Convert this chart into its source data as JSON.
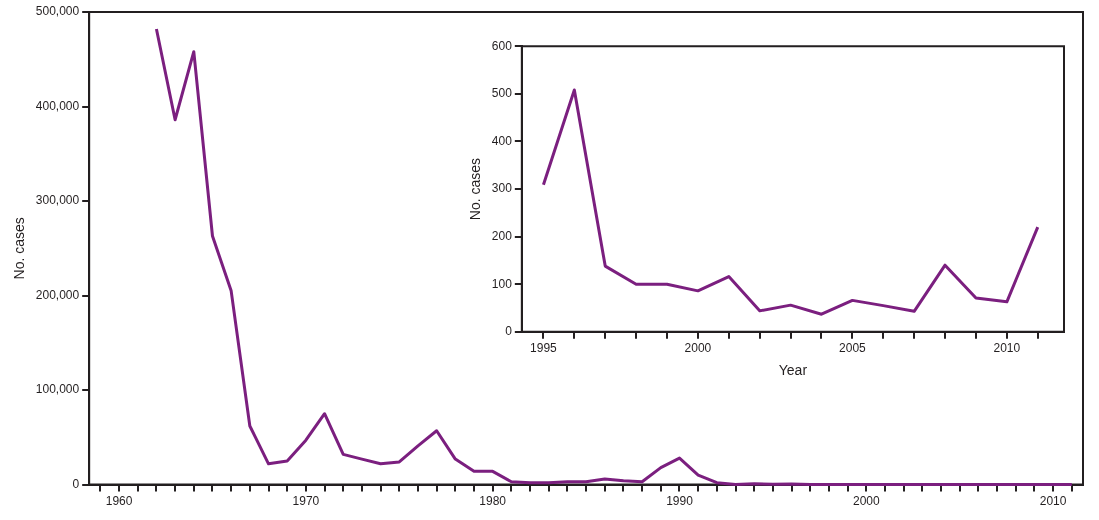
{
  "chart_data": [
    {
      "type": "line",
      "ylabel": "No. cases",
      "x": [
        1962,
        1963,
        1964,
        1965,
        1966,
        1967,
        1968,
        1969,
        1970,
        1971,
        1972,
        1973,
        1974,
        1975,
        1976,
        1977,
        1978,
        1979,
        1980,
        1981,
        1982,
        1983,
        1984,
        1985,
        1986,
        1987,
        1988,
        1989,
        1990,
        1991,
        1992,
        1993,
        1994,
        1995,
        1996,
        1997,
        1998,
        1999,
        2000,
        2001,
        2002,
        2003,
        2004,
        2005,
        2006,
        2007,
        2008,
        2009,
        2010,
        2011
      ],
      "series": [
        {
          "color": "#7b1f7f",
          "values": [
            482000,
            386000,
            458000,
            263000,
            205000,
            62000,
            22000,
            25000,
            47000,
            75000,
            32000,
            27000,
            22000,
            24000,
            41000,
            57000,
            27000,
            14000,
            14000,
            3000,
            2000,
            2000,
            3000,
            3000,
            6000,
            4000,
            3000,
            18000,
            28000,
            10000,
            2000,
            0,
            1000,
            309,
            508,
            138,
            100,
            100,
            86,
            116,
            44,
            56,
            37,
            66,
            55,
            43,
            140,
            71,
            63,
            220
          ]
        }
      ],
      "xlim": [
        1958.4,
        2011.6
      ],
      "xticks": [
        {
          "value": 1959,
          "label": null
        },
        {
          "value": 1960,
          "label": "1960"
        },
        {
          "value": 1961,
          "label": null
        },
        {
          "value": 1962,
          "label": null
        },
        {
          "value": 1963,
          "label": null
        },
        {
          "value": 1964,
          "label": null
        },
        {
          "value": 1965,
          "label": null
        },
        {
          "value": 1966,
          "label": null
        },
        {
          "value": 1967,
          "label": null
        },
        {
          "value": 1968,
          "label": null
        },
        {
          "value": 1969,
          "label": null
        },
        {
          "value": 1970,
          "label": "1970"
        },
        {
          "value": 1971,
          "label": null
        },
        {
          "value": 1972,
          "label": null
        },
        {
          "value": 1973,
          "label": null
        },
        {
          "value": 1974,
          "label": null
        },
        {
          "value": 1975,
          "label": null
        },
        {
          "value": 1976,
          "label": null
        },
        {
          "value": 1977,
          "label": null
        },
        {
          "value": 1978,
          "label": null
        },
        {
          "value": 1979,
          "label": null
        },
        {
          "value": 1980,
          "label": "1980"
        },
        {
          "value": 1981,
          "label": null
        },
        {
          "value": 1982,
          "label": null
        },
        {
          "value": 1983,
          "label": null
        },
        {
          "value": 1984,
          "label": null
        },
        {
          "value": 1985,
          "label": null
        },
        {
          "value": 1986,
          "label": null
        },
        {
          "value": 1987,
          "label": null
        },
        {
          "value": 1988,
          "label": null
        },
        {
          "value": 1989,
          "label": null
        },
        {
          "value": 1990,
          "label": "1990"
        },
        {
          "value": 1991,
          "label": null
        },
        {
          "value": 1992,
          "label": null
        },
        {
          "value": 1993,
          "label": null
        },
        {
          "value": 1994,
          "label": null
        },
        {
          "value": 1995,
          "label": null
        },
        {
          "value": 1996,
          "label": null
        },
        {
          "value": 1997,
          "label": null
        },
        {
          "value": 1998,
          "label": null
        },
        {
          "value": 1999,
          "label": null
        },
        {
          "value": 2000,
          "label": "2000"
        },
        {
          "value": 2001,
          "label": null
        },
        {
          "value": 2002,
          "label": null
        },
        {
          "value": 2003,
          "label": null
        },
        {
          "value": 2004,
          "label": null
        },
        {
          "value": 2005,
          "label": null
        },
        {
          "value": 2006,
          "label": null
        },
        {
          "value": 2007,
          "label": null
        },
        {
          "value": 2008,
          "label": null
        },
        {
          "value": 2009,
          "label": null
        },
        {
          "value": 2010,
          "label": "2010"
        },
        {
          "value": 2011,
          "label": null
        }
      ],
      "ylim": [
        0,
        500000
      ],
      "yticks": [
        {
          "value": 0,
          "label": "0"
        },
        {
          "value": 100000,
          "label": "100,000"
        },
        {
          "value": 200000,
          "label": "200,000"
        },
        {
          "value": 300000,
          "label": "300,000"
        },
        {
          "value": 400000,
          "label": "400,000"
        },
        {
          "value": 500000,
          "label": "500,000"
        }
      ],
      "marker": "none",
      "line_style": "solid"
    },
    {
      "type": "line",
      "xlabel": "Year",
      "ylabel": "No. cases",
      "x": [
        1995,
        1996,
        1997,
        1998,
        1999,
        2000,
        2001,
        2002,
        2003,
        2004,
        2005,
        2006,
        2007,
        2008,
        2009,
        2010,
        2011
      ],
      "series": [
        {
          "color": "#7b1f7f",
          "values": [
            309,
            508,
            138,
            100,
            100,
            86,
            116,
            44,
            56,
            37,
            66,
            55,
            43,
            140,
            71,
            63,
            220
          ]
        }
      ],
      "xlim": [
        1994.3,
        2011.85
      ],
      "xticks": [
        {
          "value": 1995,
          "label": "1995"
        },
        {
          "value": 1996,
          "label": null
        },
        {
          "value": 1997,
          "label": null
        },
        {
          "value": 1998,
          "label": null
        },
        {
          "value": 1999,
          "label": null
        },
        {
          "value": 2000,
          "label": "2000"
        },
        {
          "value": 2001,
          "label": null
        },
        {
          "value": 2002,
          "label": null
        },
        {
          "value": 2003,
          "label": null
        },
        {
          "value": 2004,
          "label": null
        },
        {
          "value": 2005,
          "label": "2005"
        },
        {
          "value": 2006,
          "label": null
        },
        {
          "value": 2007,
          "label": null
        },
        {
          "value": 2008,
          "label": null
        },
        {
          "value": 2009,
          "label": null
        },
        {
          "value": 2010,
          "label": "2010"
        },
        {
          "value": 2011,
          "label": null
        }
      ],
      "ylim": [
        0,
        600
      ],
      "yticks": [
        0,
        100,
        200,
        300,
        400,
        500,
        600
      ],
      "marker": "none",
      "line_style": "solid"
    }
  ]
}
